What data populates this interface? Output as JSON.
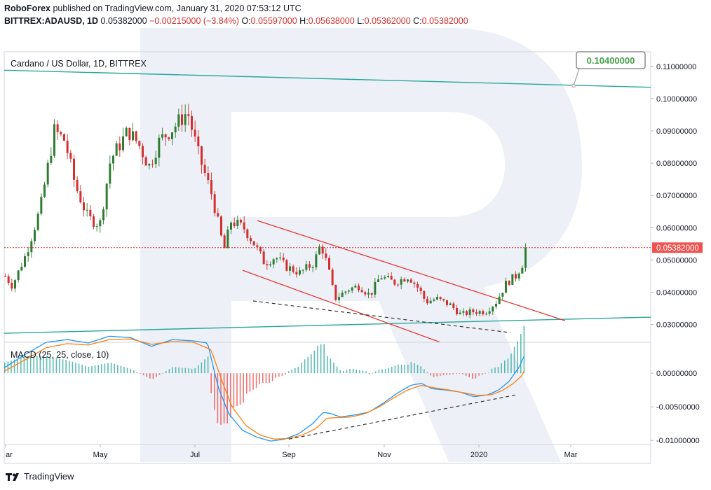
{
  "header": {
    "publisher": "RoboForex",
    "published_text": "published on TradingView.com, January 31, 2020 07:53:12 UTC",
    "symbol": "BITTREX:ADAUSD, 1D",
    "last": "0.05382000",
    "change": "−0.00215000 (−3.84%)",
    "o_label": "O:",
    "o": "0.05597000",
    "h_label": "H:",
    "h": "0.05638000",
    "l_label": "L:",
    "l": "0.05362000",
    "c_label": "C:",
    "c": "0.05382000"
  },
  "footer": {
    "brand": "TradingView"
  },
  "colors": {
    "up": "#26a69a",
    "up_candle": "#2e7d32",
    "down": "#d32f2f",
    "teal_line": "#26a69a",
    "channel": "#e53935",
    "macd": "#2196f3",
    "signal": "#ff7f0e",
    "last_price_bg": "#ef5350",
    "target_border": "#7b7b7b",
    "target_text": "#43a047"
  },
  "chart_data": [
    {
      "type": "candlestick",
      "title": "Cardano / US Dollar, 1D, BITTREX",
      "x_tick_labels": [
        "ar",
        "May",
        "Jul",
        "Sep",
        "Nov",
        "2020",
        "Mar"
      ],
      "y_tick_labels": [
        "0.11000000",
        "0.10000000",
        "0.09000000",
        "0.08000000",
        "0.07000000",
        "0.06000000",
        "0.05000000",
        "0.04000000",
        "0.03000000"
      ],
      "ylim": [
        0.0245,
        0.1145
      ],
      "last_price_label": "0.05382000",
      "last_price": 0.05382,
      "target_label": "0.10400000",
      "target_price": 0.104,
      "closes_anchor": [
        [
          0,
          0.045
        ],
        [
          10,
          0.042
        ],
        [
          30,
          0.052
        ],
        [
          50,
          0.066
        ],
        [
          70,
          0.09
        ],
        [
          85,
          0.087
        ],
        [
          100,
          0.073
        ],
        [
          118,
          0.063
        ],
        [
          135,
          0.061
        ],
        [
          150,
          0.081
        ],
        [
          175,
          0.09
        ],
        [
          190,
          0.086
        ],
        [
          205,
          0.079
        ],
        [
          220,
          0.087
        ],
        [
          240,
          0.091
        ],
        [
          260,
          0.096
        ],
        [
          275,
          0.083
        ],
        [
          295,
          0.07
        ],
        [
          305,
          0.06
        ],
        [
          312,
          0.053
        ],
        [
          322,
          0.062
        ],
        [
          340,
          0.06
        ],
        [
          355,
          0.055
        ],
        [
          370,
          0.049
        ],
        [
          385,
          0.051
        ],
        [
          400,
          0.048
        ],
        [
          420,
          0.046
        ],
        [
          440,
          0.049
        ],
        [
          450,
          0.055
        ],
        [
          460,
          0.048
        ],
        [
          470,
          0.038
        ],
        [
          490,
          0.041
        ],
        [
          505,
          0.042
        ],
        [
          520,
          0.039
        ],
        [
          535,
          0.045
        ],
        [
          555,
          0.043
        ],
        [
          575,
          0.045
        ],
        [
          590,
          0.041
        ],
        [
          600,
          0.037
        ],
        [
          615,
          0.038
        ],
        [
          635,
          0.036
        ],
        [
          650,
          0.033
        ],
        [
          665,
          0.034
        ],
        [
          685,
          0.034
        ],
        [
          700,
          0.037
        ],
        [
          715,
          0.043
        ],
        [
          728,
          0.045
        ],
        [
          738,
          0.049
        ],
        [
          745,
          0.0558
        ],
        [
          748,
          0.0538
        ]
      ],
      "lines": {
        "upper_teal": {
          "from": 0.1088,
          "to": 0.1035
        },
        "lower_teal": {
          "from": 0.0273,
          "to": 0.0323
        },
        "channel_top": {
          "from": 0.0622,
          "to": 0.0312
        },
        "channel_bottom": {
          "from": 0.0468,
          "to": 0.0245
        },
        "dashed_support": {
          "from": 0.0373,
          "to": 0.0275
        }
      }
    },
    {
      "type": "line",
      "title": "MACD (25, 25, close, 10)",
      "y_tick_labels": [
        "0.00000000",
        "-0.00500000",
        "-0.01000000"
      ],
      "ylim": [
        -0.0106,
        0.0046
      ],
      "series": [
        {
          "name": "MACD",
          "anchors": [
            [
              0,
              0.0008
            ],
            [
              30,
              0.0028
            ],
            [
              60,
              0.0046
            ],
            [
              90,
              0.005
            ],
            [
              120,
              0.0045
            ],
            [
              150,
              0.0055
            ],
            [
              180,
              0.0053
            ],
            [
              210,
              0.004
            ],
            [
              240,
              0.005
            ],
            [
              270,
              0.0048
            ],
            [
              290,
              0.0045
            ],
            [
              305,
              -0.002
            ],
            [
              320,
              -0.006
            ],
            [
              340,
              -0.0085
            ],
            [
              360,
              -0.0095
            ],
            [
              380,
              -0.0101
            ],
            [
              400,
              -0.0098
            ],
            [
              420,
              -0.009
            ],
            [
              440,
              -0.0075
            ],
            [
              455,
              -0.0058
            ],
            [
              465,
              -0.006
            ],
            [
              480,
              -0.0065
            ],
            [
              500,
              -0.0062
            ],
            [
              520,
              -0.0058
            ],
            [
              540,
              -0.0045
            ],
            [
              560,
              -0.003
            ],
            [
              580,
              -0.0018
            ],
            [
              595,
              -0.0015
            ],
            [
              610,
              -0.0023
            ],
            [
              630,
              -0.0025
            ],
            [
              650,
              -0.0028
            ],
            [
              670,
              -0.0035
            ],
            [
              690,
              -0.0032
            ],
            [
              705,
              -0.0025
            ],
            [
              720,
              -0.0012
            ],
            [
              735,
              0.001
            ],
            [
              748,
              0.0042
            ]
          ]
        },
        {
          "name": "Signal",
          "anchors": [
            [
              0,
              0.0003
            ],
            [
              30,
              0.002
            ],
            [
              60,
              0.0038
            ],
            [
              90,
              0.0044
            ],
            [
              120,
              0.0042
            ],
            [
              150,
              0.005
            ],
            [
              180,
              0.0051
            ],
            [
              210,
              0.0043
            ],
            [
              240,
              0.0047
            ],
            [
              270,
              0.0046
            ],
            [
              295,
              0.0035
            ],
            [
              310,
              -0.001
            ],
            [
              325,
              -0.005
            ],
            [
              345,
              -0.0078
            ],
            [
              365,
              -0.0092
            ],
            [
              385,
              -0.0098
            ],
            [
              405,
              -0.0097
            ],
            [
              425,
              -0.0092
            ],
            [
              445,
              -0.0082
            ],
            [
              460,
              -0.0067
            ],
            [
              475,
              -0.0066
            ],
            [
              495,
              -0.0065
            ],
            [
              515,
              -0.006
            ],
            [
              535,
              -0.005
            ],
            [
              555,
              -0.0037
            ],
            [
              575,
              -0.0025
            ],
            [
              595,
              -0.0018
            ],
            [
              615,
              -0.0022
            ],
            [
              635,
              -0.0025
            ],
            [
              655,
              -0.0029
            ],
            [
              675,
              -0.0033
            ],
            [
              695,
              -0.0032
            ],
            [
              710,
              -0.0026
            ],
            [
              725,
              -0.0016
            ],
            [
              738,
              -0.0004
            ],
            [
              748,
              0.0018
            ]
          ]
        }
      ],
      "dashed_trend": {
        "from": -0.0098,
        "to": -0.0032
      }
    }
  ]
}
